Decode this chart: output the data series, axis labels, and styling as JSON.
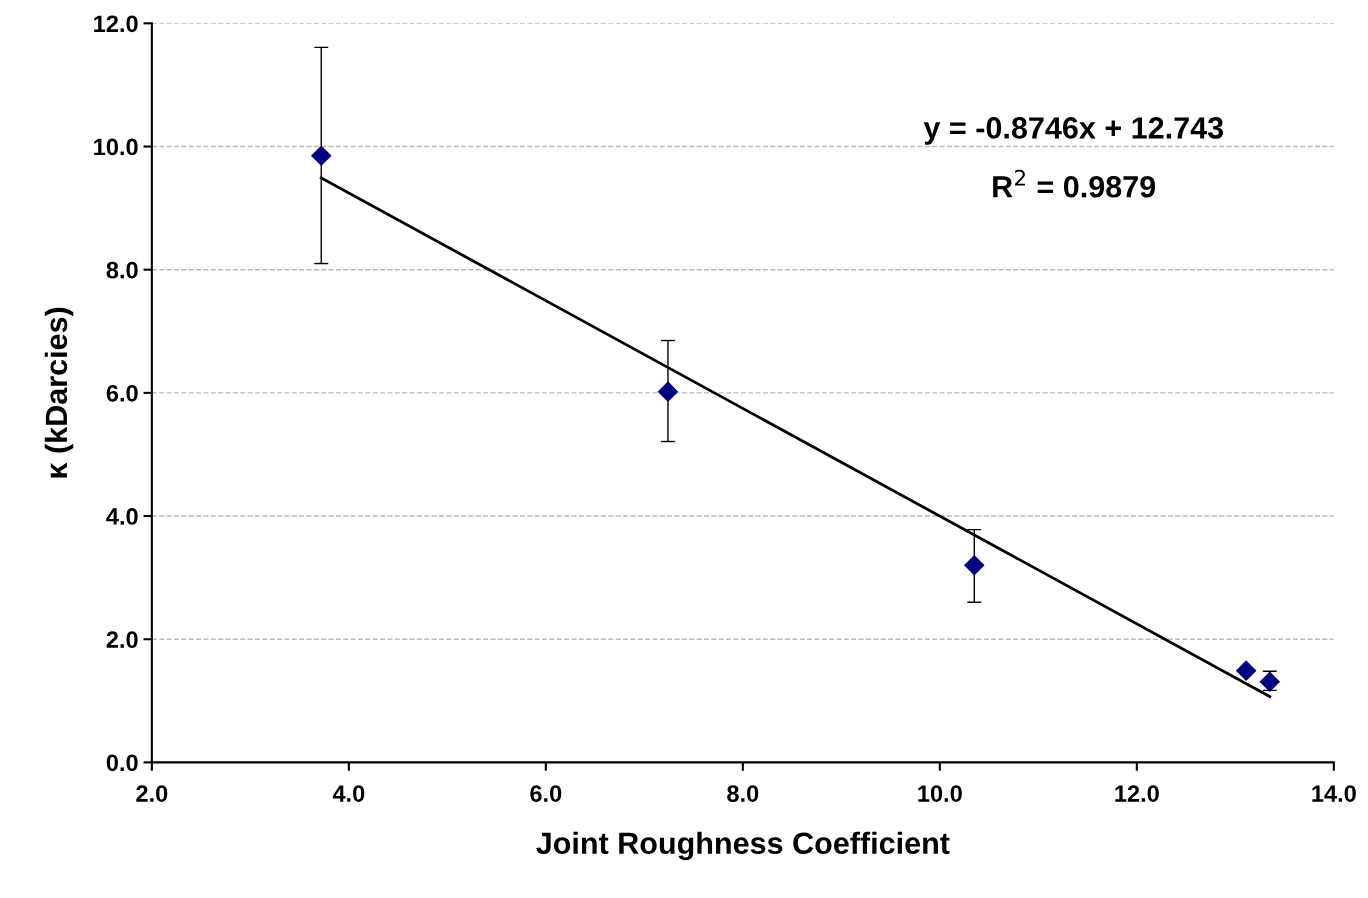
{
  "chart_data": {
    "type": "scatter",
    "xlabel": "Joint Roughness Coefficient",
    "ylabel": "κ (kDarcies)",
    "xlim": [
      2,
      14
    ],
    "ylim": [
      0,
      12
    ],
    "xticks": [
      {
        "value": 2,
        "label": "2.0"
      },
      {
        "value": 4,
        "label": "4.0"
      },
      {
        "value": 6,
        "label": "6.0"
      },
      {
        "value": 8,
        "label": "8.0"
      },
      {
        "value": 10,
        "label": "10.0"
      },
      {
        "value": 12,
        "label": "12.0"
      },
      {
        "value": 14,
        "label": "14.0"
      }
    ],
    "yticks": [
      {
        "value": 0,
        "label": "0.0"
      },
      {
        "value": 2,
        "label": "2.0"
      },
      {
        "value": 4,
        "label": "4.0"
      },
      {
        "value": 6,
        "label": "6.0"
      },
      {
        "value": 8,
        "label": "8.0"
      },
      {
        "value": 10,
        "label": "10.0"
      },
      {
        "value": 12,
        "label": "12.0"
      }
    ],
    "grid": "y",
    "legend": false,
    "series": [
      {
        "color": "#000080",
        "marker": "diamond",
        "x": [
          3.72,
          7.24,
          10.35,
          13.11,
          13.35
        ],
        "values": [
          9.85,
          6.02,
          3.2,
          1.49,
          1.31
        ],
        "errors": [
          [
            8.1,
            11.61
          ],
          [
            5.21,
            6.85
          ],
          [
            2.6,
            3.78
          ],
          null,
          [
            1.17,
            1.48
          ]
        ]
      },
      {
        "type": "line",
        "color": "#000000",
        "line_style": "solid",
        "x": [
          3.72,
          13.35
        ],
        "values": [
          9.49,
          1.07
        ]
      }
    ],
    "annotations": [
      "y = -0.8746x + 12.743",
      "R$^{2}$ = 0.9879"
    ]
  }
}
